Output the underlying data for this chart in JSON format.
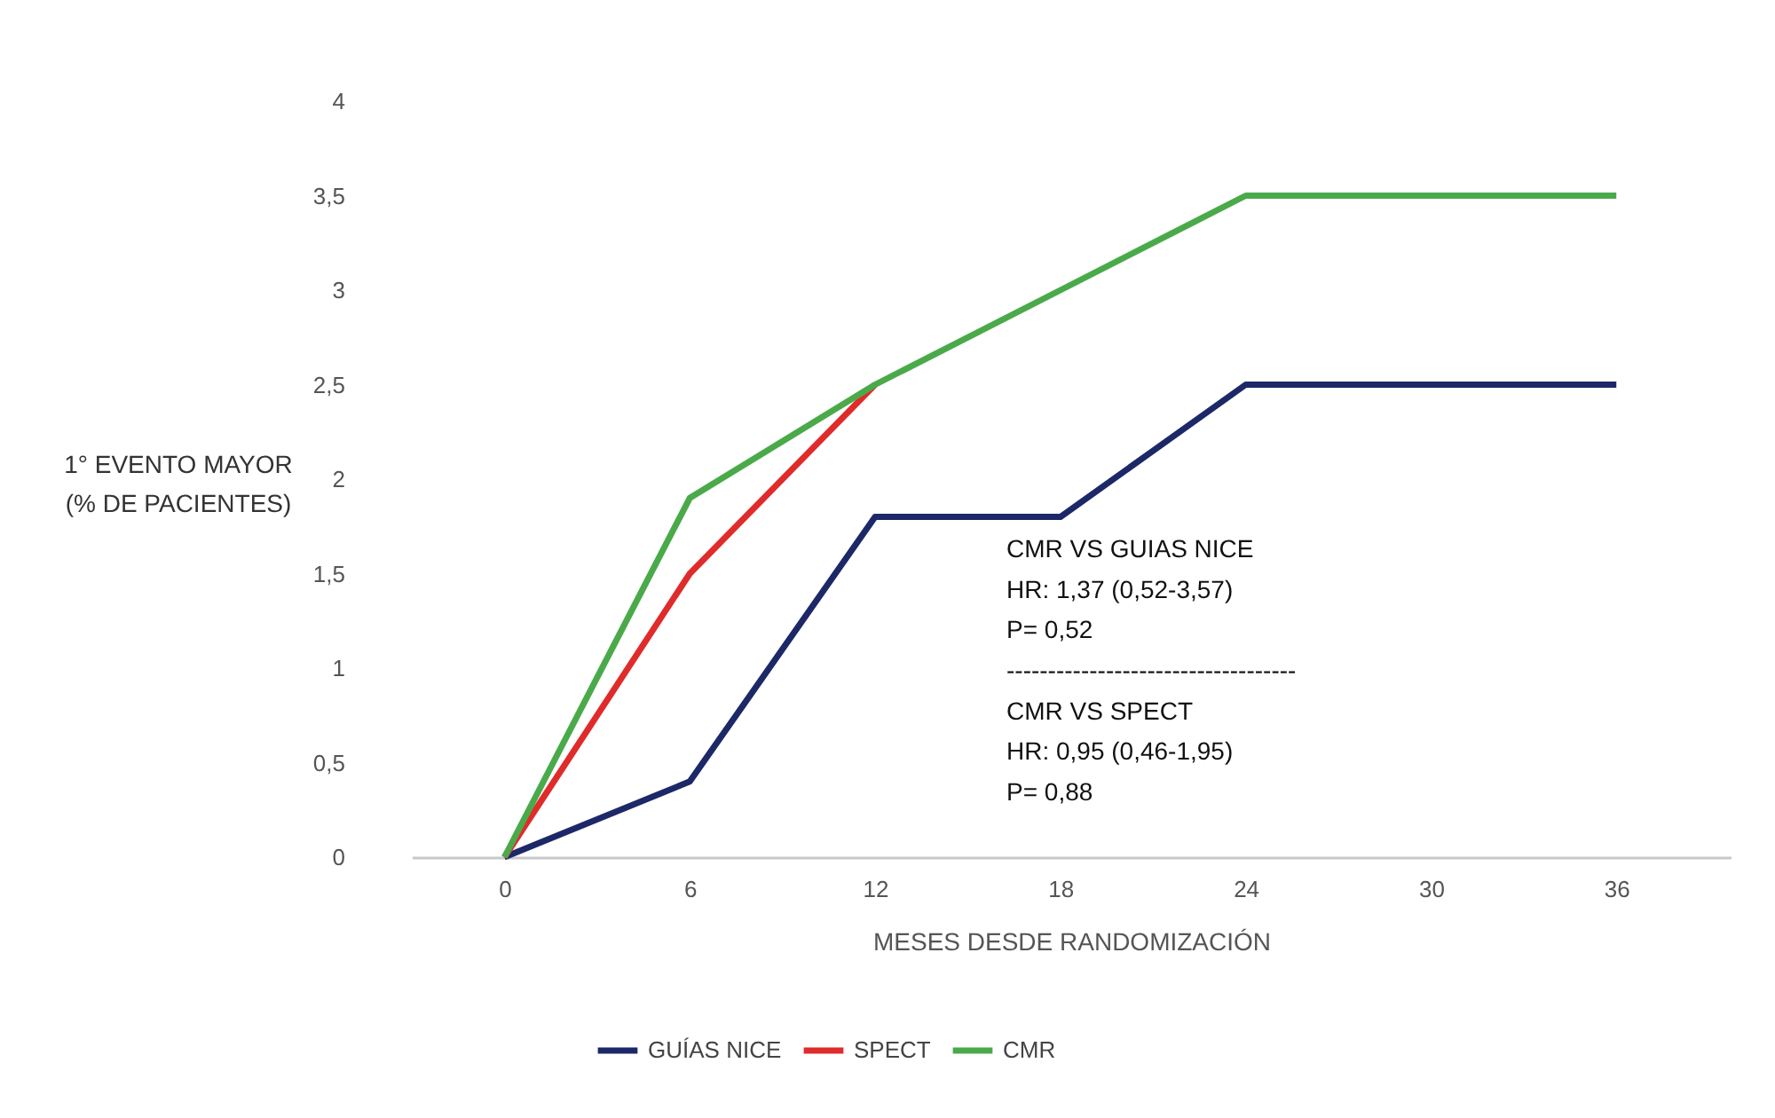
{
  "chart_data": {
    "type": "line",
    "xlabel": "MESES DESDE RANDOMIZACIÓN",
    "ylabel": "1° EVENTO  MAYOR\n(% DE PACIENTES)",
    "x": [
      0,
      6,
      12,
      18,
      24,
      30,
      36
    ],
    "series": [
      {
        "name": "GUÍAS NICE",
        "color": "#1c2868",
        "values": [
          0,
          0.4,
          1.8,
          1.8,
          2.5,
          2.5,
          2.5
        ]
      },
      {
        "name": "SPECT",
        "color": "#e02b2b",
        "values": [
          0,
          1.5,
          2.5,
          null,
          null,
          null,
          null
        ]
      },
      {
        "name": "CMR",
        "color": "#4aaa4a",
        "values": [
          0,
          1.9,
          2.5,
          3,
          3.5,
          3.5,
          3.5
        ]
      }
    ],
    "xlim": [
      -3,
      39.7
    ],
    "xticks": [
      0,
      6,
      12,
      18,
      24,
      30,
      36
    ],
    "ylim": [
      0,
      4
    ],
    "yticks": [
      0,
      {
        "value": 0.5,
        "label": "0,5"
      },
      1,
      {
        "value": 1.5,
        "label": "1,5"
      },
      2,
      {
        "value": 2.5,
        "label": "2,5"
      },
      3,
      {
        "value": 3.5,
        "label": "3,5"
      },
      4
    ],
    "grid": false,
    "legend": "bottom",
    "marker": "none",
    "line_style": "solid",
    "annotations": [
      "CMR VS GUIAS NICE",
      "HR: 1,37 (0,52-3,57)",
      "P= 0,52",
      "-----------------------------------",
      "CMR VS SPECT",
      "HR: 0,95 (0,46-1,95)",
      "P= 0,88"
    ]
  }
}
